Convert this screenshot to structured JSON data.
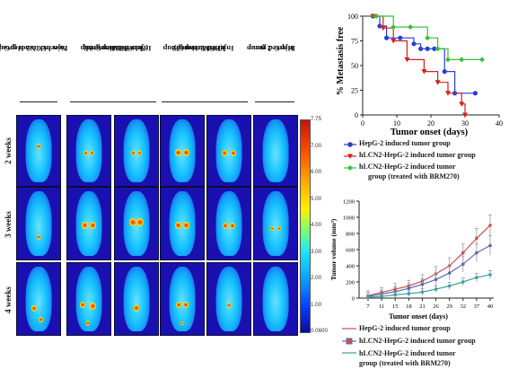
{
  "columns": [
    {
      "lines": [
        "Non-hLCN2-HepG-2",
        "Injected tumor group"
      ]
    },
    {
      "lines": [
        "hLCN2-HepG-2",
        "Injected tumor group",
        "(Non-BRM treated)"
      ]
    },
    {
      "lines": [
        "hLCN2-HepG-2",
        "Injected tumor group",
        "(BRM treated)"
      ]
    },
    {
      "lines": [
        "HepG-2 non -",
        "Injected group"
      ]
    }
  ],
  "rows": [
    "2 weeks",
    "3 weeks",
    "4 weeks"
  ],
  "colorbar": {
    "ticks": [
      "7.75",
      "7.00",
      "6.00",
      "5.00",
      "4.00",
      "3.00",
      "2.00",
      "1.00",
      "0.0600"
    ],
    "colors": [
      "#c41410",
      "#ff4a00",
      "#ffb000",
      "#fff000",
      "#7dff6e",
      "#18e6ff",
      "#0aa0ff",
      "#0a3cff",
      "#0a0a9c"
    ]
  },
  "chart_data": [
    {
      "type": "line",
      "ylabel": "% Metastasis free",
      "xlabel": "Tumor onset (days)",
      "xlim": [
        0,
        40
      ],
      "ylim": [
        0,
        100
      ],
      "x_ticks": [
        "0",
        "10",
        "20",
        "30",
        "40"
      ],
      "y_ticks": [
        "0",
        "25",
        "50",
        "75",
        "100"
      ],
      "step": true,
      "series": [
        {
          "name": "HepG-2 induced tumor group",
          "color": "#2a3fd8",
          "marker": "circle",
          "x": [
            0,
            3,
            5,
            7,
            11,
            15,
            17,
            19,
            21,
            24,
            27,
            33
          ],
          "y": [
            100,
            100,
            90,
            78,
            78,
            72,
            67,
            67,
            67,
            44,
            22,
            22
          ]
        },
        {
          "name": "hLCN2-HepG-2 induced tumor group",
          "color": "#d42020",
          "marker": "triangle",
          "x": [
            0,
            3,
            6,
            9,
            13,
            18,
            22,
            25,
            29,
            30
          ],
          "y": [
            100,
            100,
            88,
            75,
            56,
            44,
            33,
            22,
            11,
            0
          ]
        },
        {
          "name": "hLCN2-HepG-2 induced tumor group (treated with BRM270)",
          "color": "#38c038",
          "marker": "diamond",
          "x": [
            0,
            4,
            9,
            14,
            19,
            22,
            25,
            29,
            35
          ],
          "y": [
            100,
            100,
            89,
            89,
            78,
            67,
            56,
            56,
            56
          ]
        }
      ]
    },
    {
      "type": "line",
      "ylabel": "Tumor volume (mm³)",
      "xlabel": "Tumor onset (days)",
      "categories": [
        "7",
        "11",
        "15",
        "18",
        "21",
        "26",
        "29",
        "32",
        "37",
        "40"
      ],
      "ylim": [
        0,
        1200
      ],
      "y_ticks": [
        "0",
        "200",
        "400",
        "600",
        "800",
        "1000",
        "1200"
      ],
      "series": [
        {
          "name": "HepG-2 induced tumor group",
          "color": "#c85050",
          "values": [
            30,
            70,
            110,
            150,
            210,
            300,
            400,
            560,
            740,
            900
          ],
          "errors": [
            60,
            60,
            70,
            70,
            80,
            90,
            100,
            110,
            120,
            130
          ]
        },
        {
          "name": "hLCN2-HepG-2 induced tumor group",
          "color": "#5a6ab0",
          "values": [
            20,
            50,
            80,
            120,
            170,
            230,
            310,
            420,
            560,
            650
          ],
          "errors": [
            50,
            50,
            60,
            60,
            70,
            80,
            90,
            100,
            110,
            120
          ]
        },
        {
          "name": "hLCN2-HepG-2 induced tumor group (treated with BRM270)",
          "color": "#3aa0a0",
          "values": [
            10,
            20,
            40,
            55,
            75,
            110,
            150,
            200,
            255,
            290
          ],
          "errors": [
            30,
            30,
            30,
            35,
            40,
            40,
            45,
            50,
            50,
            50
          ]
        }
      ]
    }
  ],
  "legend1": [
    {
      "lines": [
        "HepG-2 induced tumor group"
      ]
    },
    {
      "lines": [
        "hLCN2-HepG-2  induced tumor group"
      ]
    },
    {
      "lines": [
        "hLCN2-HepG-2 induced tumor",
        "group  (treated with BRM270)"
      ]
    }
  ],
  "legend2": [
    {
      "lines": [
        "HepG-2 induced tumor  group"
      ]
    },
    {
      "lines": [
        "hLCN2-HepG-2 induced tumor group"
      ]
    },
    {
      "lines": [
        "hLCN2-HepG-2 induced tumor",
        "group (treated with BRM270)"
      ]
    }
  ]
}
